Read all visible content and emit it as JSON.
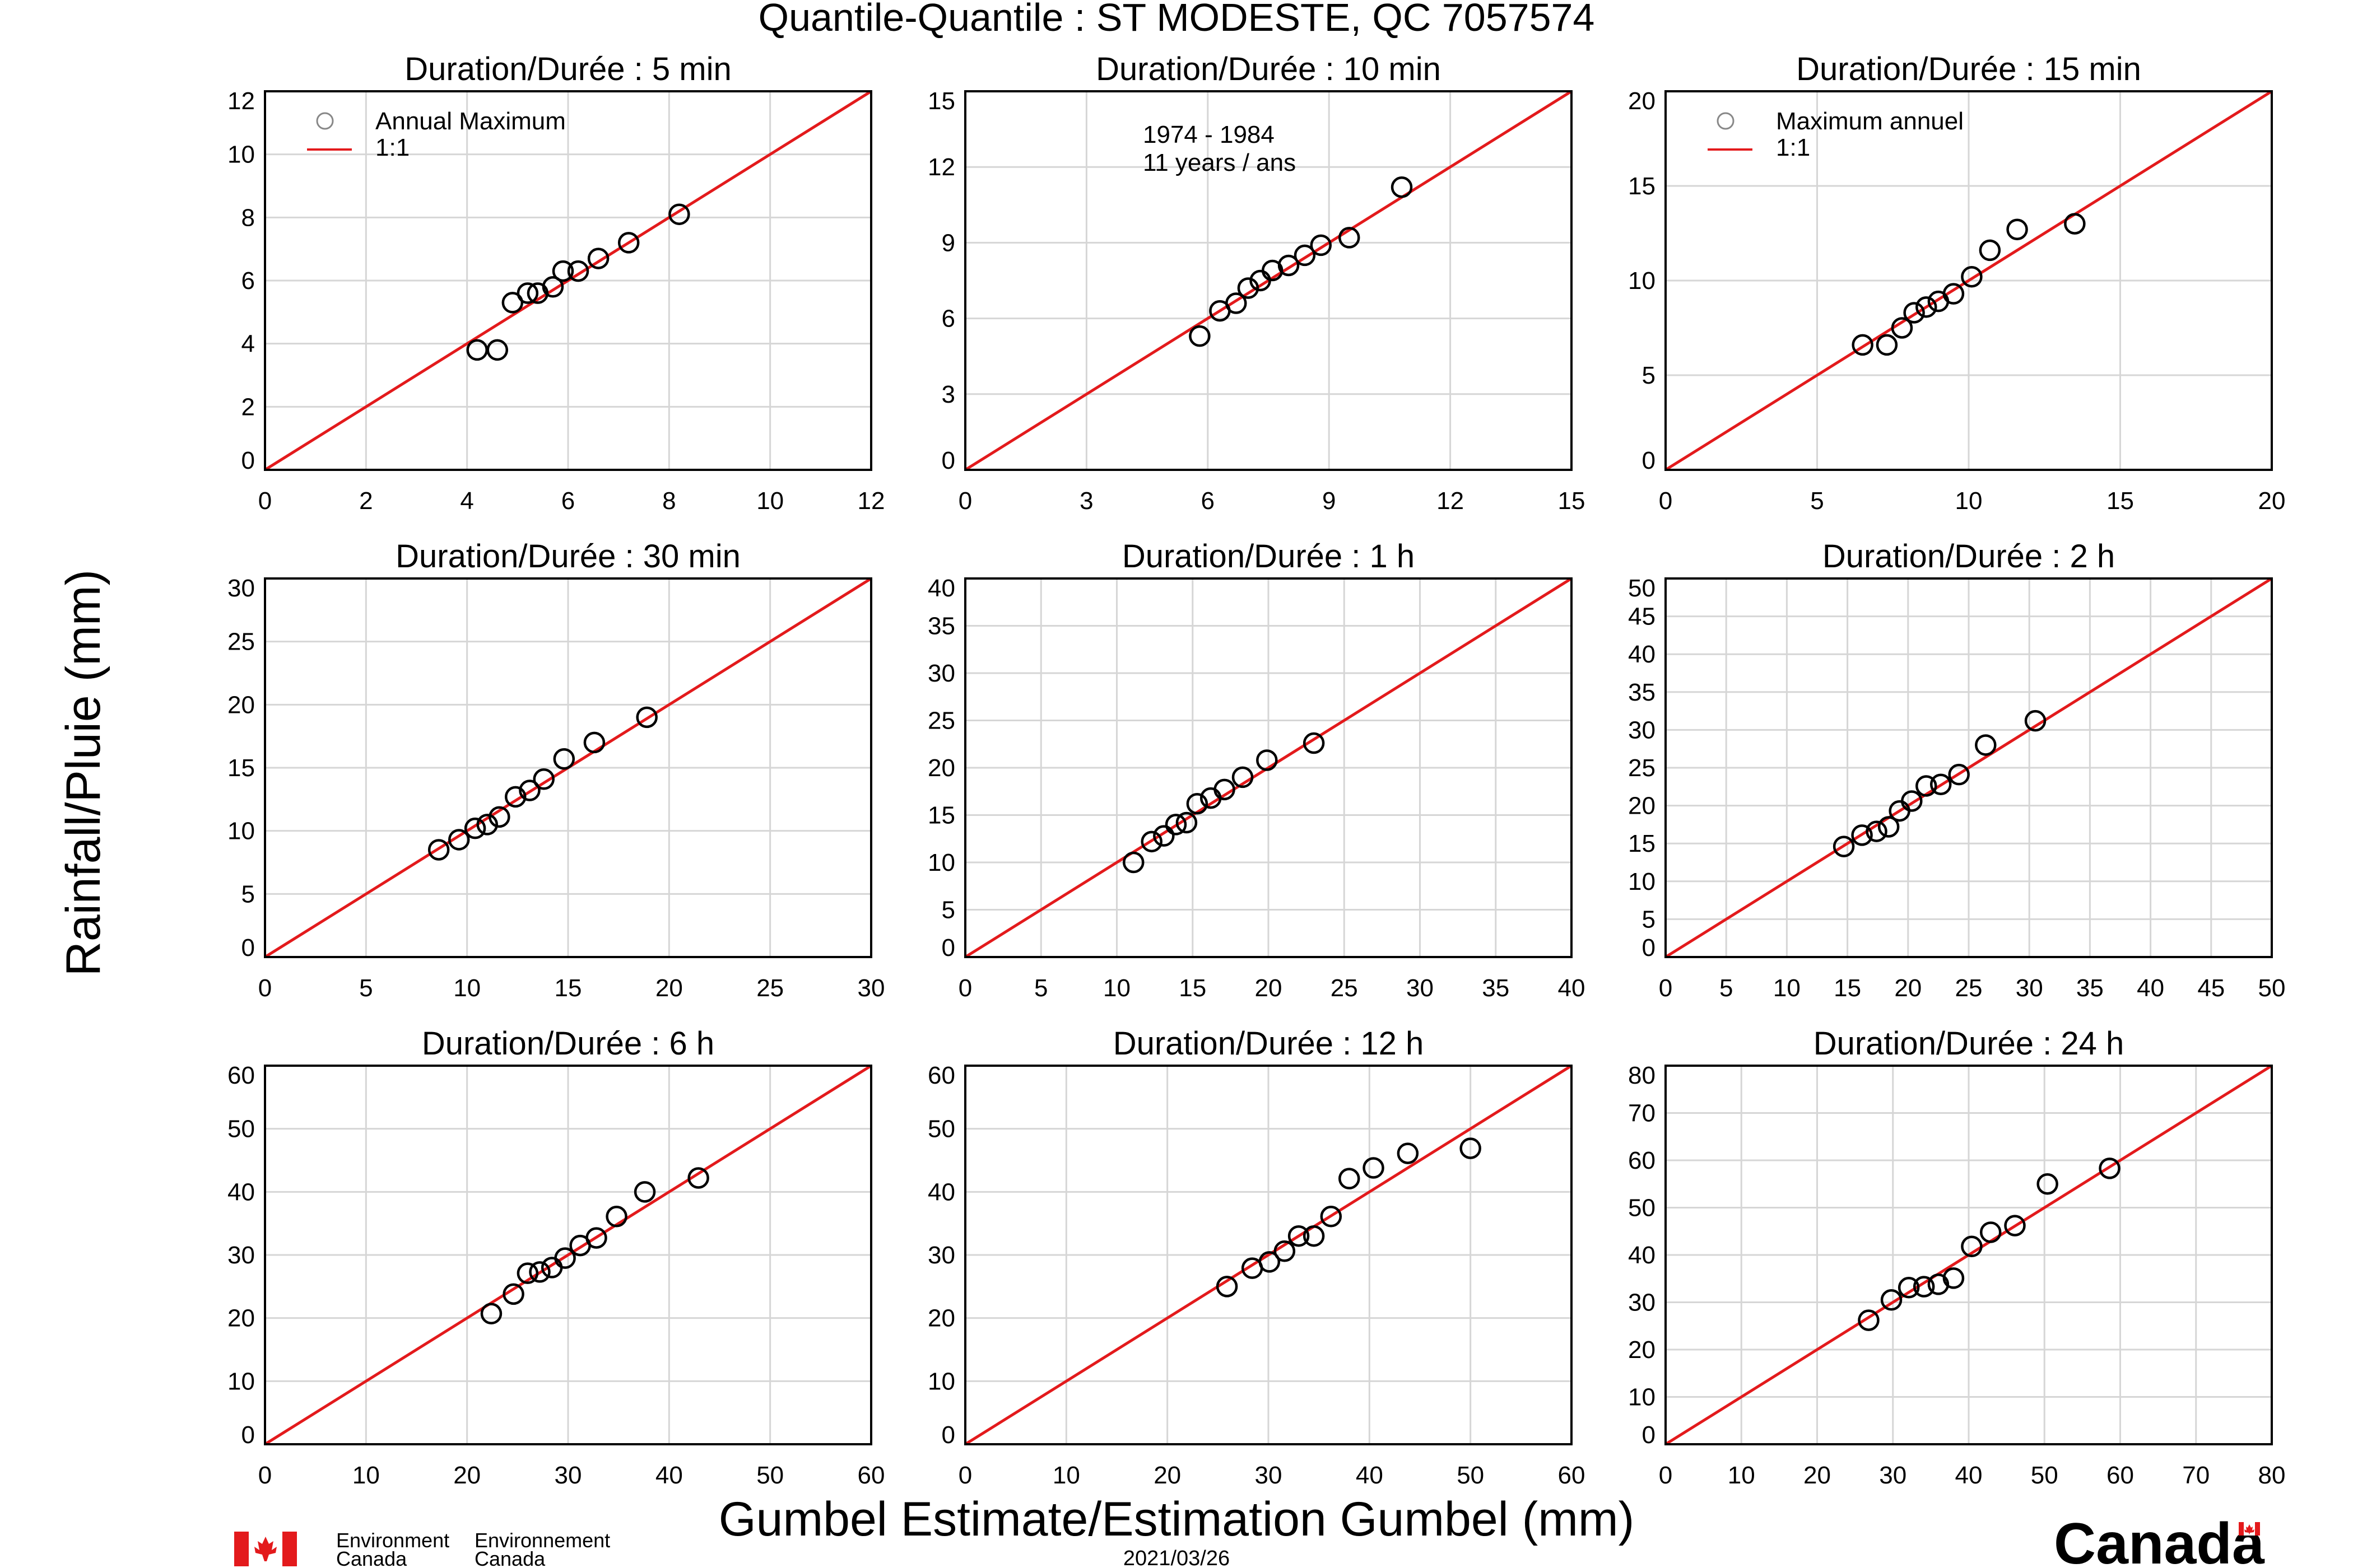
{
  "title": "Quantile-Quantile : ST MODESTE, QC  7057574",
  "xlabel": "Gumbel Estimate/Estimation Gumbel (mm)",
  "ylabel": "Rainfall/Pluie (mm)",
  "date": "2021/03/26",
  "footer": {
    "dept_en_1": "Environment",
    "dept_en_2": "Canada",
    "dept_fr_1": "Environnement",
    "dept_fr_2": "Canada",
    "wordmark": "Canada"
  },
  "legend_en": {
    "points": "Annual Maximum",
    "line": "1:1"
  },
  "legend_fr": {
    "points": "Maximum annuel",
    "line": "1:1"
  },
  "period_note": {
    "line1": "1974 - 1984",
    "line2": "11 years / ans"
  },
  "colors": {
    "line": "#e31a1c",
    "grid": "#d6d6d6",
    "marker": "#000000",
    "flag_red": "#e31a1c"
  },
  "chart_data": [
    {
      "type": "scatter",
      "title": "Duration/Durée : 5 min",
      "xlim": [
        0,
        12
      ],
      "ylim": [
        0,
        12
      ],
      "xticks": [
        0,
        2,
        4,
        6,
        8,
        10,
        12
      ],
      "yticks": [
        0,
        2,
        4,
        6,
        8,
        10,
        12
      ],
      "grid": true,
      "reference_line": "1:1",
      "x": [
        4.2,
        4.6,
        4.9,
        5.2,
        5.4,
        5.7,
        5.9,
        6.2,
        6.6,
        7.2,
        8.2
      ],
      "y": [
        3.8,
        3.8,
        5.3,
        5.6,
        5.6,
        5.8,
        6.3,
        6.3,
        6.7,
        7.2,
        8.1
      ]
    },
    {
      "type": "scatter",
      "title": "Duration/Durée : 10 min",
      "xlim": [
        0,
        15
      ],
      "ylim": [
        0,
        15
      ],
      "xticks": [
        0,
        3,
        6,
        9,
        12,
        15
      ],
      "yticks": [
        0,
        3,
        6,
        9,
        12,
        15
      ],
      "grid": true,
      "reference_line": "1:1",
      "x": [
        5.8,
        6.3,
        6.7,
        7.0,
        7.3,
        7.6,
        8.0,
        8.4,
        8.8,
        9.5,
        10.8
      ],
      "y": [
        5.3,
        6.3,
        6.6,
        7.2,
        7.5,
        7.9,
        8.1,
        8.5,
        8.9,
        9.2,
        11.2
      ]
    },
    {
      "type": "scatter",
      "title": "Duration/Durée : 15 min",
      "xlim": [
        0,
        20
      ],
      "ylim": [
        0,
        20
      ],
      "xticks": [
        0,
        5,
        10,
        15,
        20
      ],
      "yticks": [
        0,
        5,
        10,
        15,
        20
      ],
      "grid": true,
      "reference_line": "1:1",
      "x": [
        6.5,
        7.3,
        7.8,
        8.2,
        8.6,
        9.0,
        9.5,
        10.1,
        10.7,
        11.6,
        13.5
      ],
      "y": [
        6.6,
        6.6,
        7.5,
        8.3,
        8.6,
        8.9,
        9.3,
        10.2,
        11.6,
        12.7,
        13.0
      ]
    },
    {
      "type": "scatter",
      "title": "Duration/Durée : 30 min",
      "xlim": [
        0,
        30
      ],
      "ylim": [
        0,
        30
      ],
      "xticks": [
        0,
        5,
        10,
        15,
        20,
        25,
        30
      ],
      "yticks": [
        0,
        5,
        10,
        15,
        20,
        25,
        30
      ],
      "grid": true,
      "reference_line": "1:1",
      "x": [
        8.6,
        9.6,
        10.4,
        11.0,
        11.6,
        12.4,
        13.1,
        13.8,
        14.8,
        16.3,
        18.9
      ],
      "y": [
        8.5,
        9.3,
        10.2,
        10.5,
        11.1,
        12.7,
        13.2,
        14.1,
        15.7,
        17.0,
        19.0
      ]
    },
    {
      "type": "scatter",
      "title": "Duration/Durée : 1 h",
      "xlim": [
        0,
        40
      ],
      "ylim": [
        0,
        40
      ],
      "xticks": [
        0,
        5,
        10,
        15,
        20,
        25,
        30,
        35,
        40
      ],
      "yticks": [
        0,
        5,
        10,
        15,
        20,
        25,
        30,
        35,
        40
      ],
      "grid": true,
      "reference_line": "1:1",
      "x": [
        11.1,
        12.3,
        13.1,
        13.9,
        14.6,
        15.3,
        16.2,
        17.1,
        18.3,
        19.9,
        23.0
      ],
      "y": [
        10.0,
        12.2,
        12.8,
        14.0,
        14.2,
        16.2,
        16.8,
        17.7,
        19.0,
        20.8,
        22.6
      ]
    },
    {
      "type": "scatter",
      "title": "Duration/Durée : 2 h",
      "xlim": [
        0,
        50
      ],
      "ylim": [
        0,
        50
      ],
      "xticks": [
        0,
        5,
        10,
        15,
        20,
        25,
        30,
        35,
        40,
        45,
        50
      ],
      "yticks": [
        0,
        5,
        10,
        15,
        20,
        25,
        30,
        35,
        40,
        45,
        50
      ],
      "grid": true,
      "reference_line": "1:1",
      "x": [
        14.7,
        16.2,
        17.4,
        18.4,
        19.3,
        20.3,
        21.5,
        22.7,
        24.2,
        26.4,
        30.5
      ],
      "y": [
        14.6,
        16.1,
        16.6,
        17.2,
        19.3,
        20.6,
        22.6,
        22.8,
        24.1,
        28.0,
        31.2
      ]
    },
    {
      "type": "scatter",
      "title": "Duration/Durée : 6 h",
      "xlim": [
        0,
        60
      ],
      "ylim": [
        0,
        60
      ],
      "xticks": [
        0,
        10,
        20,
        30,
        40,
        50,
        60
      ],
      "yticks": [
        0,
        10,
        20,
        30,
        40,
        50,
        60
      ],
      "grid": true,
      "reference_line": "1:1",
      "x": [
        22.4,
        24.6,
        26.0,
        27.2,
        28.4,
        29.7,
        31.2,
        32.8,
        34.8,
        37.6,
        42.9
      ],
      "y": [
        20.7,
        23.8,
        27.1,
        27.3,
        28.0,
        29.5,
        31.5,
        32.7,
        36.1,
        40.0,
        42.2
      ]
    },
    {
      "type": "scatter",
      "title": "Duration/Durée : 12 h",
      "xlim": [
        0,
        60
      ],
      "ylim": [
        0,
        60
      ],
      "xticks": [
        0,
        10,
        20,
        30,
        40,
        50,
        60
      ],
      "yticks": [
        0,
        10,
        20,
        30,
        40,
        50,
        60
      ],
      "grid": true,
      "reference_line": "1:1",
      "x": [
        25.9,
        28.4,
        30.1,
        31.6,
        33.0,
        34.5,
        36.2,
        38.0,
        40.4,
        43.8,
        50.0
      ],
      "y": [
        25.0,
        27.9,
        28.9,
        30.6,
        33.0,
        33.0,
        36.1,
        42.1,
        43.8,
        46.1,
        46.9
      ]
    },
    {
      "type": "scatter",
      "title": "Duration/Durée : 24 h",
      "xlim": [
        0,
        80
      ],
      "ylim": [
        0,
        80
      ],
      "xticks": [
        0,
        10,
        20,
        30,
        40,
        50,
        60,
        70,
        80
      ],
      "yticks": [
        0,
        10,
        20,
        30,
        40,
        50,
        60,
        70,
        80
      ],
      "grid": true,
      "reference_line": "1:1",
      "x": [
        26.8,
        29.8,
        32.1,
        34.1,
        36.0,
        38.0,
        40.4,
        42.9,
        46.1,
        50.4,
        58.6
      ],
      "y": [
        26.2,
        30.5,
        33.1,
        33.3,
        33.8,
        35.1,
        41.8,
        44.8,
        46.2,
        55.0,
        58.3
      ]
    }
  ]
}
